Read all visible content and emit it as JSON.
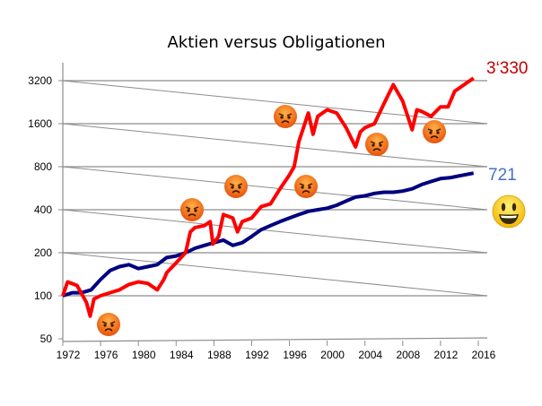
{
  "chart_data": {
    "type": "line",
    "title": "Aktien versus Obligationen",
    "xlabel": "",
    "ylabel": "",
    "yscale": "log2",
    "xlim": [
      1972,
      2016
    ],
    "ylim": [
      50,
      3200
    ],
    "x_ticks": [
      "1972",
      "1976",
      "1980",
      "1984",
      "1988",
      "1992",
      "1996",
      "2000",
      "2004",
      "2008",
      "2012",
      "2016"
    ],
    "y_ticks": [
      "50",
      "100",
      "200",
      "400",
      "800",
      "1600",
      "3200"
    ],
    "grid": true,
    "colors": {
      "stocks": "#ff0000",
      "bonds": "#000080",
      "stocks_label": "#c00000",
      "bonds_label": "#4472c4"
    },
    "series": [
      {
        "name": "Aktien",
        "end_label": "3‘330",
        "x": [
          1972,
          1972.5,
          1973.5,
          1974.5,
          1974.9,
          1975.3,
          1976,
          1977,
          1978,
          1979,
          1980,
          1981,
          1982,
          1982.7,
          1983,
          1984,
          1985,
          1985.5,
          1986,
          1987,
          1987.6,
          1987.9,
          1988.5,
          1989,
          1990,
          1990.5,
          1991,
          1992,
          1993,
          1994,
          1995,
          1996,
          1996.5,
          1997,
          1998,
          1998.5,
          1999,
          2000,
          2001,
          2002,
          2003,
          2003.5,
          2004,
          2005,
          2006,
          2007,
          2008,
          2009,
          2009.5,
          2010,
          2011,
          2012,
          2012.8,
          2013.5,
          2014.5,
          2015.5
        ],
        "values": [
          100,
          125,
          118,
          90,
          72,
          95,
          100,
          105,
          110,
          120,
          125,
          122,
          110,
          130,
          145,
          170,
          200,
          280,
          300,
          310,
          330,
          230,
          260,
          370,
          350,
          280,
          330,
          350,
          420,
          440,
          560,
          700,
          800,
          1200,
          1900,
          1350,
          1800,
          2000,
          1900,
          1500,
          1100,
          1400,
          1500,
          1600,
          2200,
          3000,
          2300,
          1450,
          2000,
          1950,
          1800,
          2100,
          2100,
          2700,
          3000,
          3330
        ]
      },
      {
        "name": "Obligationen",
        "end_label": "721",
        "x": [
          1972,
          1973,
          1974,
          1975,
          1976,
          1977,
          1978,
          1979,
          1980,
          1981,
          1982,
          1983,
          1984,
          1985,
          1986,
          1987,
          1988,
          1989,
          1990,
          1991,
          1992,
          1993,
          1994,
          1995,
          1996,
          1997,
          1998,
          1999,
          2000,
          2001,
          2002,
          2003,
          2004,
          2005,
          2006,
          2007,
          2008,
          2009,
          2010,
          2011,
          2012,
          2013,
          2014,
          2015.5
        ],
        "values": [
          100,
          105,
          105,
          110,
          130,
          150,
          160,
          165,
          155,
          160,
          165,
          185,
          190,
          200,
          215,
          225,
          235,
          245,
          225,
          235,
          260,
          290,
          310,
          330,
          350,
          370,
          390,
          400,
          410,
          430,
          460,
          490,
          500,
          520,
          530,
          530,
          540,
          560,
          600,
          630,
          660,
          670,
          690,
          721
        ]
      }
    ],
    "annotations": [
      "angry-face",
      "angry-face",
      "angry-face",
      "angry-face",
      "angry-face",
      "angry-face",
      "angry-face",
      "smiley-face"
    ]
  }
}
